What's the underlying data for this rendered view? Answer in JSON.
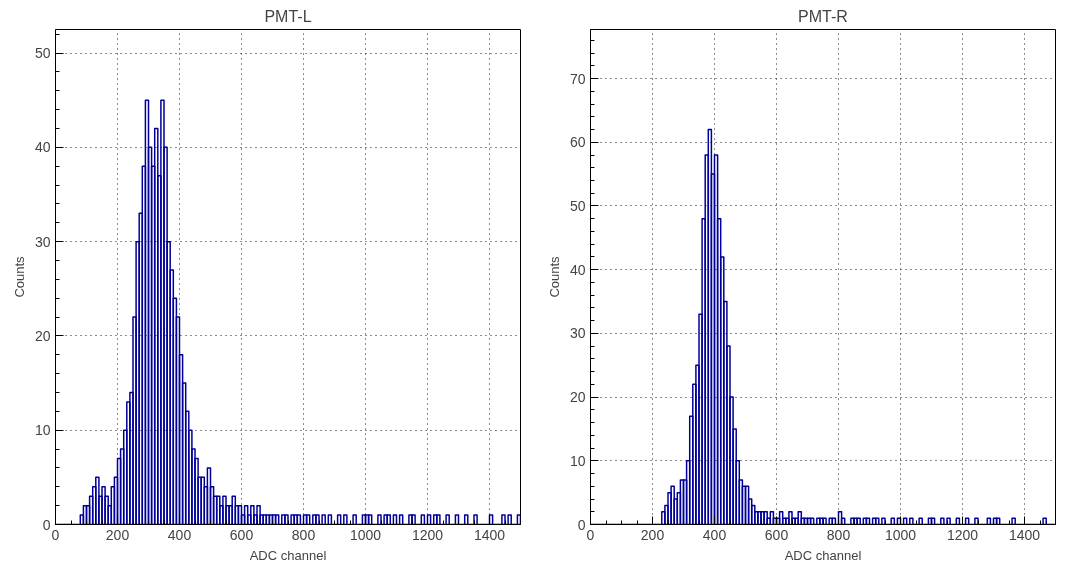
{
  "chart_data": [
    {
      "type": "histogram",
      "title": "PMT-L",
      "xlabel": "ADC channel",
      "ylabel": "Counts",
      "color": "#000099",
      "bins": [
        0,
        10,
        20,
        30,
        40,
        50,
        60,
        70,
        80,
        90,
        100,
        110,
        120,
        130,
        140,
        150,
        160,
        170,
        180,
        190,
        200,
        210,
        220,
        230,
        240,
        250,
        260,
        270,
        280,
        290,
        300,
        310,
        320,
        330,
        340,
        350,
        360,
        370,
        380,
        390,
        400,
        410,
        420,
        430,
        440,
        450,
        460,
        470,
        480,
        490,
        500,
        510,
        520,
        530,
        540,
        550,
        560,
        570,
        580,
        590,
        600,
        610,
        620,
        630,
        640,
        650,
        660,
        670,
        680,
        690,
        700,
        710,
        720,
        730,
        740,
        750,
        760,
        770,
        780,
        790,
        800,
        810,
        820,
        830,
        840,
        850,
        860,
        870,
        880,
        890,
        900,
        910,
        920,
        930,
        940,
        950,
        960,
        970,
        980,
        990,
        1000,
        1010,
        1020,
        1030,
        1040,
        1050,
        1060,
        1070,
        1080,
        1090,
        1100,
        1110,
        1120,
        1130,
        1140,
        1150,
        1160,
        1170,
        1180,
        1190,
        1200,
        1210,
        1220,
        1230,
        1240,
        1250,
        1260,
        1270,
        1280,
        1290,
        1300,
        1310,
        1320,
        1330,
        1340,
        1350,
        1360,
        1370,
        1380,
        1390,
        1400,
        1410,
        1420,
        1430,
        1440,
        1450,
        1460,
        1470,
        1480,
        1490,
        1500
      ],
      "values": [
        0,
        0,
        0,
        0,
        0,
        0,
        0,
        0,
        1,
        2,
        2,
        3,
        4,
        5,
        3,
        4,
        3,
        2,
        4,
        5,
        7,
        8,
        10,
        13,
        14,
        22,
        30,
        33,
        38,
        45,
        40,
        38,
        42,
        37,
        45,
        40,
        30,
        27,
        24,
        22,
        18,
        15,
        12,
        10,
        8,
        7,
        5,
        5,
        4,
        6,
        4,
        3,
        3,
        2,
        3,
        2,
        2,
        3,
        2,
        2,
        1,
        2,
        1,
        2,
        1,
        2,
        1,
        1,
        1,
        1,
        1,
        1,
        0,
        1,
        1,
        0,
        1,
        1,
        1,
        0,
        1,
        1,
        0,
        1,
        1,
        0,
        1,
        0,
        1,
        0,
        0,
        1,
        0,
        1,
        0,
        0,
        1,
        0,
        0,
        1,
        1,
        1,
        0,
        0,
        1,
        0,
        1,
        1,
        0,
        1,
        0,
        1,
        0,
        0,
        1,
        1,
        0,
        0,
        1,
        0,
        1,
        0,
        1,
        1,
        0,
        0,
        1,
        0,
        0,
        1,
        0,
        0,
        1,
        0,
        0,
        1,
        0,
        0,
        0,
        0,
        1,
        0,
        0,
        0,
        1,
        0,
        1,
        0,
        0,
        1
      ],
      "xlim": [
        0,
        1500
      ],
      "ylim": [
        0,
        52.5
      ],
      "xticks": [
        0,
        200,
        400,
        600,
        800,
        1000,
        1200,
        1400
      ],
      "yticks": [
        0,
        10,
        20,
        30,
        40,
        50
      ],
      "grid": true,
      "line_style": "solid"
    },
    {
      "type": "histogram",
      "title": "PMT-R",
      "xlabel": "ADC channel",
      "ylabel": "Counts",
      "color": "#000099",
      "bins": [
        0,
        10,
        20,
        30,
        40,
        50,
        60,
        70,
        80,
        90,
        100,
        110,
        120,
        130,
        140,
        150,
        160,
        170,
        180,
        190,
        200,
        210,
        220,
        230,
        240,
        250,
        260,
        270,
        280,
        290,
        300,
        310,
        320,
        330,
        340,
        350,
        360,
        370,
        380,
        390,
        400,
        410,
        420,
        430,
        440,
        450,
        460,
        470,
        480,
        490,
        500,
        510,
        520,
        530,
        540,
        550,
        560,
        570,
        580,
        590,
        600,
        610,
        620,
        630,
        640,
        650,
        660,
        670,
        680,
        690,
        700,
        710,
        720,
        730,
        740,
        750,
        760,
        770,
        780,
        790,
        800,
        810,
        820,
        830,
        840,
        850,
        860,
        870,
        880,
        890,
        900,
        910,
        920,
        930,
        940,
        950,
        960,
        970,
        980,
        990,
        1000,
        1010,
        1020,
        1030,
        1040,
        1050,
        1060,
        1070,
        1080,
        1090,
        1100,
        1110,
        1120,
        1130,
        1140,
        1150,
        1160,
        1170,
        1180,
        1190,
        1200,
        1210,
        1220,
        1230,
        1240,
        1250,
        1260,
        1270,
        1280,
        1290,
        1300,
        1310,
        1320,
        1330,
        1340,
        1350,
        1360,
        1370,
        1380,
        1390,
        1400,
        1410,
        1420,
        1430,
        1440,
        1450,
        1460,
        1470,
        1480,
        1490,
        1500
      ],
      "values": [
        0,
        0,
        0,
        0,
        0,
        0,
        0,
        0,
        0,
        0,
        0,
        0,
        0,
        0,
        0,
        0,
        0,
        0,
        0,
        0,
        0,
        0,
        0,
        2,
        3,
        5,
        6,
        4,
        5,
        7,
        7,
        10,
        17,
        22,
        25,
        33,
        48,
        58,
        62,
        55,
        58,
        48,
        42,
        35,
        28,
        20,
        15,
        10,
        7,
        6,
        6,
        4,
        3,
        2,
        2,
        2,
        2,
        1,
        2,
        1,
        1,
        2,
        1,
        1,
        2,
        1,
        1,
        2,
        1,
        1,
        1,
        1,
        0,
        1,
        1,
        1,
        0,
        1,
        1,
        0,
        2,
        1,
        0,
        0,
        1,
        1,
        1,
        0,
        1,
        1,
        0,
        1,
        1,
        0,
        1,
        0,
        0,
        1,
        0,
        1,
        0,
        1,
        0,
        1,
        0,
        0,
        1,
        0,
        0,
        1,
        1,
        0,
        0,
        1,
        0,
        1,
        0,
        0,
        1,
        0,
        0,
        1,
        0,
        0,
        1,
        0,
        0,
        0,
        1,
        0,
        1,
        1,
        0,
        0,
        0,
        0,
        1,
        0,
        0,
        0,
        0,
        0,
        0,
        0,
        0,
        0,
        1,
        0,
        0,
        0
      ],
      "xlim": [
        0,
        1500
      ],
      "ylim": [
        0,
        77.7
      ],
      "xticks": [
        0,
        200,
        400,
        600,
        800,
        1000,
        1200,
        1400
      ],
      "yticks": [
        0,
        10,
        20,
        30,
        40,
        50,
        60,
        70
      ],
      "grid": true,
      "line_style": "solid"
    }
  ]
}
